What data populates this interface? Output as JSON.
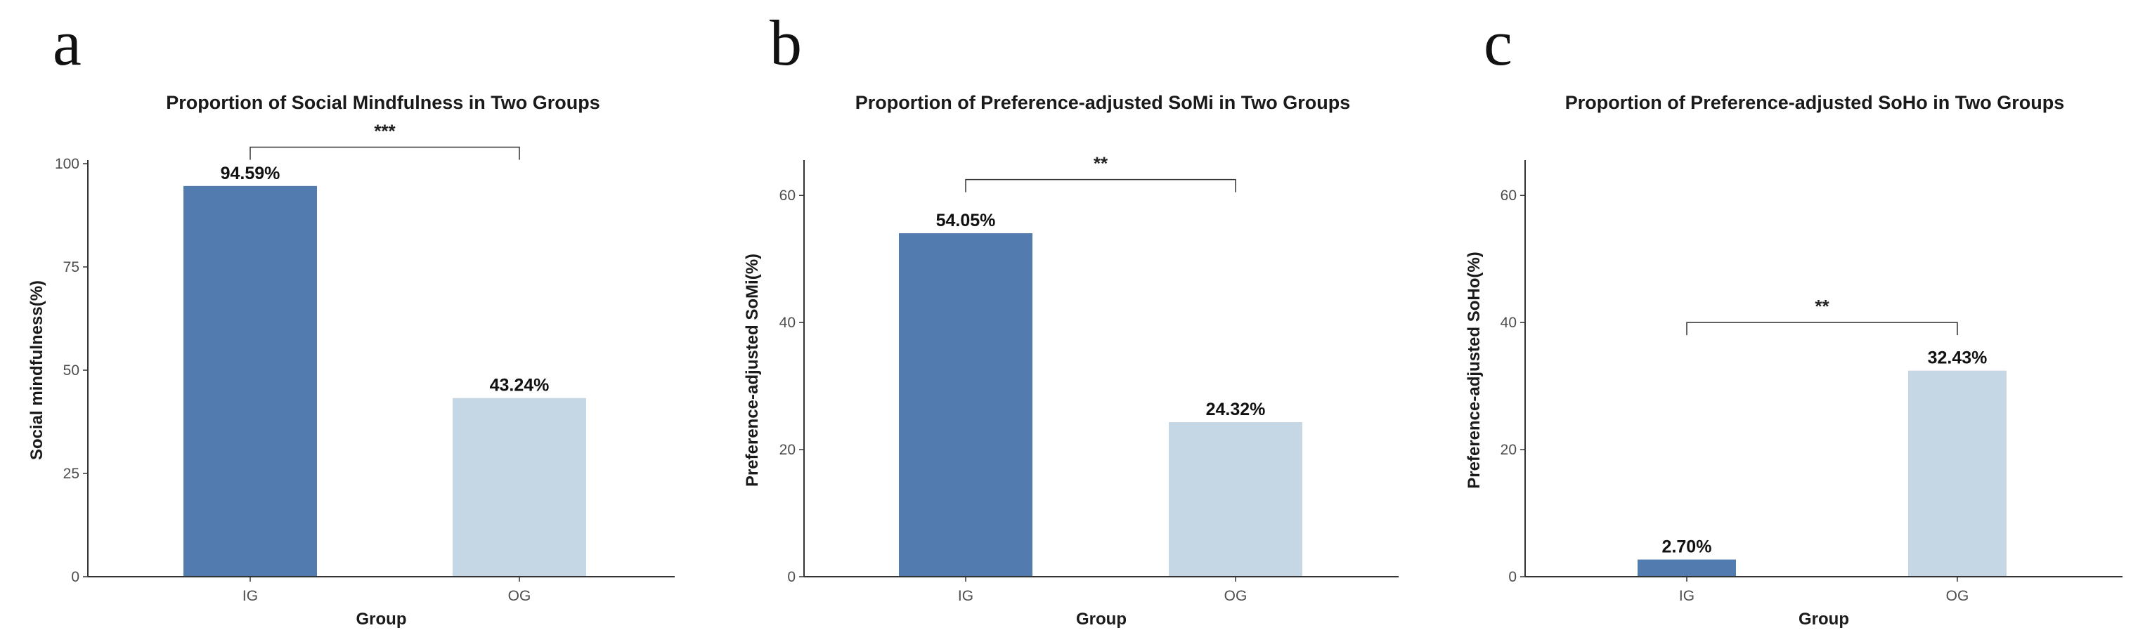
{
  "chart_data": [
    {
      "panel": "a",
      "type": "bar",
      "title": "Proportion of Social Mindfulness in Two Groups",
      "xlabel": "Group",
      "ylabel": "Social mindfulness(%)",
      "categories": [
        "IG",
        "OG"
      ],
      "values": [
        94.59,
        43.24
      ],
      "value_labels": [
        "94.59%",
        "43.24%"
      ],
      "bar_colors": [
        "#527cb0",
        "#c5d6e4"
      ],
      "ylim": [
        0,
        100
      ],
      "yticks": [
        0,
        25,
        50,
        75,
        100
      ],
      "grid": false,
      "significance": {
        "label": "***",
        "between": [
          "IG",
          "OG"
        ],
        "level": 104
      }
    },
    {
      "panel": "b",
      "type": "bar",
      "title": "Proportion of Preference-adjusted SoMi in Two Groups",
      "xlabel": "Group",
      "ylabel": "Preference-adjusted SoMi(%)",
      "categories": [
        "IG",
        "OG"
      ],
      "values": [
        54.05,
        24.32
      ],
      "value_labels": [
        "54.05%",
        "24.32%"
      ],
      "bar_colors": [
        "#527cb0",
        "#c5d6e4"
      ],
      "ylim": [
        0,
        65
      ],
      "yticks": [
        0,
        20,
        40,
        60
      ],
      "grid": false,
      "significance": {
        "label": "**",
        "between": [
          "IG",
          "OG"
        ],
        "level": 62.5
      }
    },
    {
      "panel": "c",
      "type": "bar",
      "title": "Proportion of Preference-adjusted SoHo in Two Groups",
      "xlabel": "Group",
      "ylabel": "Preference-adjusted SoHo(%)",
      "categories": [
        "IG",
        "OG"
      ],
      "values": [
        2.7,
        32.43
      ],
      "value_labels": [
        "2.70%",
        "32.43%"
      ],
      "bar_colors": [
        "#527cb0",
        "#c5d6e4"
      ],
      "ylim": [
        0,
        65
      ],
      "yticks": [
        0,
        20,
        40,
        60
      ],
      "grid": false,
      "significance": {
        "label": "**",
        "between": [
          "IG",
          "OG"
        ],
        "level": 40
      }
    }
  ]
}
